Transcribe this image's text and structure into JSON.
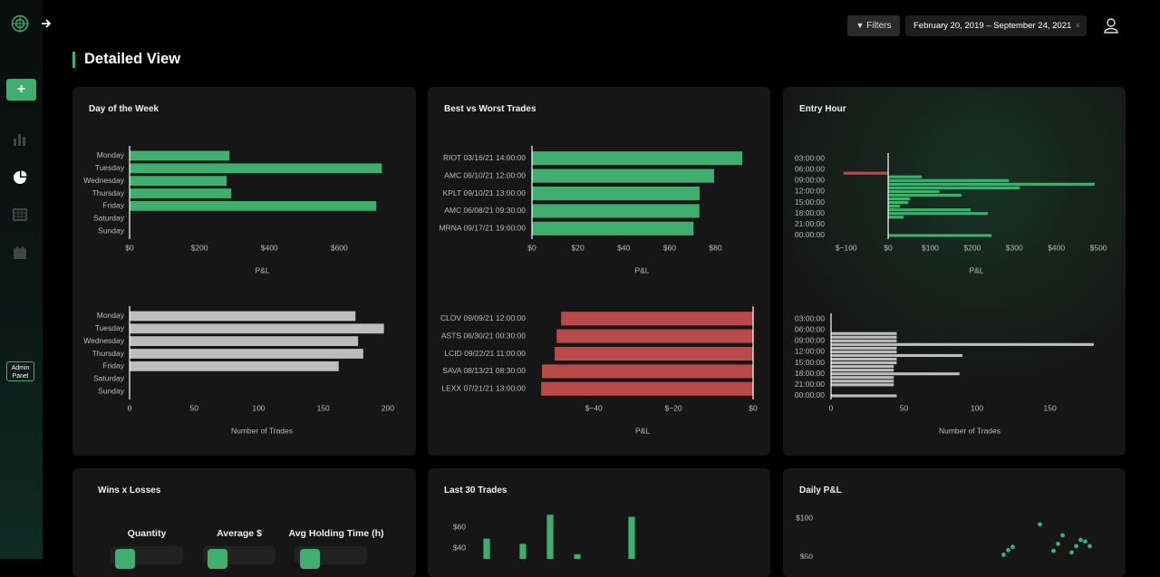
{
  "sidebar": {
    "admin_button": "Admin Panel"
  },
  "header": {
    "filters_button": "Filters",
    "date_range": "February 20, 2019 – September 24, 2021"
  },
  "page_title": "Detailed View",
  "cards": [
    "Day of the Week",
    "Best vs Worst Trades",
    "Entry Hour",
    "Wins x Losses",
    "Last 30 Trades",
    "Daily P&L"
  ],
  "summary": {
    "headers": [
      "Quantity",
      "Average $",
      "Avg Holding Time (h)"
    ]
  },
  "chart_data": [
    {
      "type": "bar",
      "orientation": "horizontal",
      "categories": [
        "Monday",
        "Tuesday",
        "Wednesday",
        "Thursday",
        "Friday",
        "Saturday",
        "Sunday"
      ],
      "values": [
        286,
        722,
        278,
        291,
        706,
        0,
        0
      ],
      "color": "#3fae6f",
      "xlim": [
        0,
        760
      ],
      "xticks": [
        {
          "value": 0,
          "label": "$0"
        },
        {
          "value": 200,
          "label": "$200"
        },
        {
          "value": 400,
          "label": "$400"
        },
        {
          "value": 600,
          "label": "$600"
        }
      ],
      "xlabel": "P&L"
    },
    {
      "type": "bar",
      "orientation": "horizontal",
      "categories": [
        "Monday",
        "Tuesday",
        "Wednesday",
        "Thursday",
        "Friday",
        "Saturday",
        "Sunday"
      ],
      "values": [
        175,
        197,
        177,
        181,
        162,
        0,
        0
      ],
      "color": "#bdbdbd",
      "xlim": [
        0,
        205
      ],
      "xticks": [
        0,
        50,
        100,
        150,
        200
      ],
      "xlabel": "Number of Trades"
    },
    {
      "type": "bar",
      "orientation": "horizontal",
      "categories": [
        "RIOT 03/16/21 14:00:00",
        "AMC 06/10/21 12:00:00",
        "KPLT 09/10/21 13:00:00",
        "AMC 06/08/21 09:30:00",
        "MRNA 09/17/21 19:00:00"
      ],
      "values": [
        91.7,
        79.4,
        73.1,
        73,
        70.4
      ],
      "color": "#3fae6f",
      "xlim": [
        0,
        96
      ],
      "xticks": [
        {
          "value": 0,
          "label": "$0"
        },
        {
          "value": 20,
          "label": "$20"
        },
        {
          "value": 40,
          "label": "$40"
        },
        {
          "value": 60,
          "label": "$60"
        },
        {
          "value": 80,
          "label": "$80"
        }
      ],
      "xlabel": "P&L"
    },
    {
      "type": "bar",
      "orientation": "horizontal",
      "categories": [
        "CLOV 09/09/21 12:00:00",
        "ASTS 06/30/21 00:30:00",
        "LCID 09/22/21 11:00:00",
        "SAVA 08/13/21 08:30:00",
        "LEXX 07/21/21 13:00:00"
      ],
      "values": [
        -48.2,
        -49.3,
        -49.8,
        -53,
        -53.2
      ],
      "color": "#b84a4a",
      "xlim": [
        -55.5,
        0
      ],
      "xticks": [
        {
          "value": -40,
          "label": "$−40"
        },
        {
          "value": -20,
          "label": "$−20"
        },
        {
          "value": 0,
          "label": "$0"
        }
      ],
      "xlabel": "P&L"
    },
    {
      "type": "bar",
      "orientation": "horizontal",
      "categories": [
        "03:00:00",
        null,
        null,
        "06:00:00",
        null,
        null,
        "09:00:00",
        null,
        null,
        "12:00:00",
        null,
        null,
        "15:00:00",
        null,
        null,
        "18:00:00",
        null,
        null,
        "21:00:00",
        null,
        null,
        "00:00:00"
      ],
      "values": [
        0,
        0,
        0,
        0,
        -106,
        80,
        287,
        491,
        313,
        122,
        174,
        52,
        48,
        28,
        196,
        237,
        37,
        0,
        0,
        0,
        0,
        246
      ],
      "color": "#3fae6f",
      "negative_color": "#b84a4a",
      "xlim": [
        -110,
        530
      ],
      "xticks": [
        {
          "value": -100,
          "label": "$−100"
        },
        {
          "value": 0,
          "label": "$0"
        },
        {
          "value": 100,
          "label": "$100"
        },
        {
          "value": 200,
          "label": "$200"
        },
        {
          "value": 300,
          "label": "$300"
        },
        {
          "value": 400,
          "label": "$400"
        },
        {
          "value": 500,
          "label": "$500"
        }
      ],
      "xlabel": "P&L"
    },
    {
      "type": "bar",
      "orientation": "horizontal",
      "categories": [
        "03:00:00",
        null,
        null,
        "06:00:00",
        null,
        null,
        "09:00:00",
        null,
        null,
        "12:00:00",
        null,
        null,
        "15:00:00",
        null,
        null,
        "18:00:00",
        null,
        null,
        "21:00:00",
        null,
        null,
        "00:00:00"
      ],
      "values": [
        0,
        0,
        0,
        0,
        45,
        45,
        45,
        180,
        45,
        45,
        90,
        45,
        45,
        43,
        43,
        88,
        43,
        43,
        43,
        0,
        0,
        45
      ],
      "color": "#bdbdbd",
      "xlim": [
        0,
        190
      ],
      "xticks": [
        0,
        50,
        100,
        150
      ],
      "xlabel": "Number of Trades"
    },
    {
      "type": "bar",
      "orientation": "vertical",
      "values": [
        49,
        null,
        null,
        null,
        44,
        null,
        null,
        72,
        null,
        null,
        34,
        null,
        null,
        null,
        null,
        null,
        70,
        null,
        null,
        null,
        null,
        null,
        null,
        null,
        null,
        null,
        null,
        null,
        null,
        null
      ],
      "color": "#3fae6f",
      "ylim": [
        0,
        80
      ],
      "yticks": [
        {
          "value": 40,
          "label": "$40"
        },
        {
          "value": 60,
          "label": "$60"
        }
      ]
    },
    {
      "type": "scatter",
      "values": [
        null,
        null,
        null,
        null,
        null,
        null,
        null,
        null,
        null,
        null,
        null,
        null,
        null,
        null,
        null,
        null,
        null,
        null,
        null,
        null,
        null,
        null,
        null,
        null,
        null,
        null,
        null,
        null,
        null,
        null,
        null,
        null,
        null,
        null,
        null,
        null,
        null,
        null,
        null,
        null,
        null,
        null,
        53,
        59,
        63,
        null,
        null,
        null,
        null,
        null,
        92,
        null,
        null,
        58,
        67,
        78,
        null,
        56,
        64,
        72,
        70,
        64,
        null,
        null
      ],
      "color": "#3fae6f",
      "ylim": [
        0,
        120
      ],
      "yticks": [
        {
          "value": 50,
          "label": "$50"
        },
        {
          "value": 100,
          "label": "$100"
        }
      ]
    }
  ]
}
